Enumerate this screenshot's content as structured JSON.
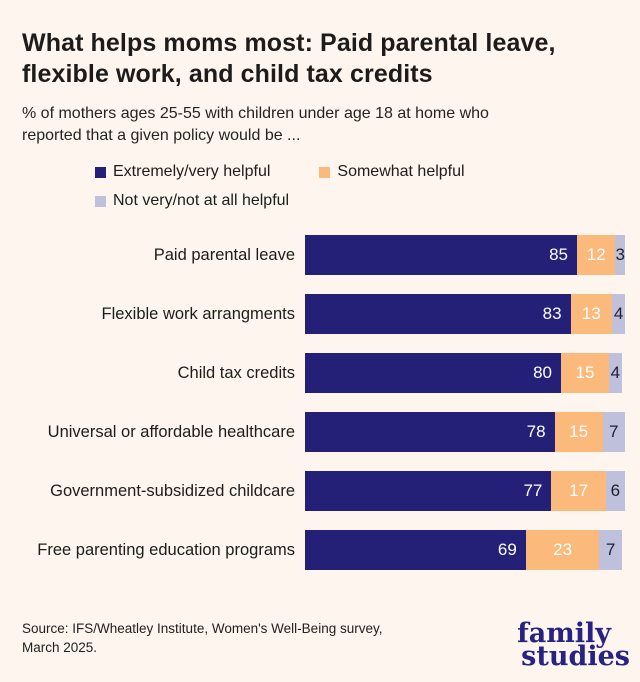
{
  "title_lines": [
    "What helps moms most: Paid parental leave,",
    "flexible work, and child tax credits"
  ],
  "subtitle_lines": [
    "% of mothers ages 25-55 with children under age 18 at home who",
    "reported that a given policy would be ..."
  ],
  "legend": [
    {
      "label": "Extremely/very helpful",
      "color": "#242078"
    },
    {
      "label": "Somewhat helpful",
      "color": "#fbb97b"
    },
    {
      "label": "Not very/not at all helpful",
      "color": "#bec0dc"
    }
  ],
  "chart_data": {
    "type": "bar",
    "orientation": "horizontal",
    "stacked": true,
    "value_unit": "%",
    "xlim": [
      0,
      100
    ],
    "grid": false,
    "categories": [
      "Paid parental leave",
      "Flexible work arrangments",
      "Child tax credits",
      "Universal or affordable healthcare",
      "Government-subsidized childcare",
      "Free parenting education programs"
    ],
    "series": [
      {
        "name": "Extremely/very helpful",
        "color": "#242078",
        "label_color": "#ffffff",
        "values": [
          85,
          83,
          80,
          78,
          77,
          69
        ]
      },
      {
        "name": "Somewhat helpful",
        "color": "#fbb97b",
        "label_color": "#ffffff",
        "values": [
          12,
          13,
          15,
          15,
          17,
          23
        ]
      },
      {
        "name": "Not very/not at all helpful",
        "color": "#bec0dc",
        "label_color": "#1f1e33",
        "values": [
          3,
          4,
          4,
          7,
          6,
          7
        ]
      }
    ]
  },
  "source_lines": [
    "Source: IFS/Wheatley Institute, Women's Well-Being survey,",
    "March 2025."
  ],
  "logo": {
    "line1": "family",
    "line2": "studies"
  },
  "colors": {
    "background": "#fdf5ee",
    "navy": "#242078",
    "orange": "#fbb97b",
    "lavender": "#bec0dc",
    "text": "#1d1d1b",
    "logo_navy": "#272383"
  }
}
